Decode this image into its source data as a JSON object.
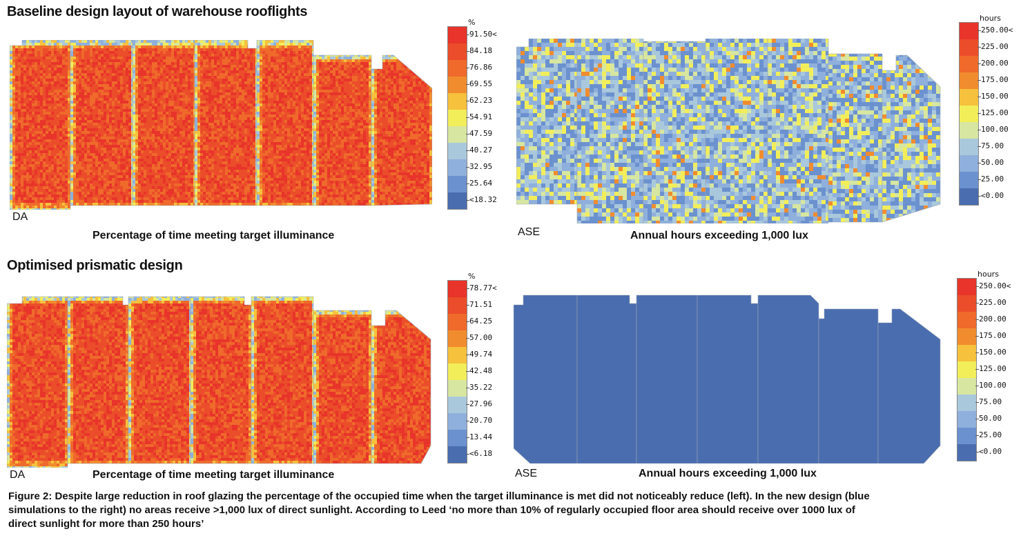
{
  "sections": {
    "baseline_title": "Baseline design layout of warehouse rooflights",
    "optimised_title": "Optimised prismatic design"
  },
  "panels": {
    "top_left": {
      "metric": "DA",
      "caption": "Percentage of time meeting target illuminance"
    },
    "top_right": {
      "metric": "ASE",
      "caption": "Annual hours exceeding 1,000 lux"
    },
    "bottom_left": {
      "metric": "DA",
      "caption": "Percentage of time meeting target illuminance"
    },
    "bottom_right": {
      "metric": "ASE",
      "caption": "Annual hours exceeding 1,000 lux"
    }
  },
  "legends": {
    "da_baseline": {
      "unit": "%",
      "labels": [
        "91.50<",
        "84.18",
        "76.86",
        "69.55",
        "62.23",
        "54.91",
        "47.59",
        "40.27",
        "32.95",
        "25.64",
        "<18.32"
      ]
    },
    "ase_baseline": {
      "unit": "hours",
      "labels": [
        "250.00<",
        "225.00",
        "200.00",
        "175.00",
        "150.00",
        "125.00",
        "100.00",
        "75.00",
        "50.00",
        "25.00",
        "<0.00"
      ]
    },
    "da_optimised": {
      "unit": "%",
      "labels": [
        "78.77<",
        "71.51",
        "64.25",
        "57.00",
        "49.74",
        "42.48",
        "35.22",
        "27.96",
        "20.70",
        "13.44",
        "<6.18"
      ]
    },
    "ase_optimised": {
      "unit": "hours",
      "labels": [
        "250.00<",
        "225.00",
        "200.00",
        "175.00",
        "150.00",
        "125.00",
        "100.00",
        "75.00",
        "50.00",
        "25.00",
        "<0.00"
      ]
    }
  },
  "scale_colors": [
    "#e8342a",
    "#eb4d2a",
    "#ef6a2b",
    "#f18c2e",
    "#f6c13c",
    "#f2ee5a",
    "#d7e6a0",
    "#a9c8dc",
    "#8fb0dc",
    "#6b91cf",
    "#4a6daf"
  ],
  "figure_caption": "Figure 2: Despite large reduction in roof glazing the percentage of the occupied time when the target illuminance is met did not noticeably reduce (left). In the new design (blue simulations to the right) no areas receive >1,000 lux of direct sunlight. According to Leed ‘no more than 10% of regularly occupied floor area should receive over 1000 lux of direct sunlight for more than 250 hours’"
}
